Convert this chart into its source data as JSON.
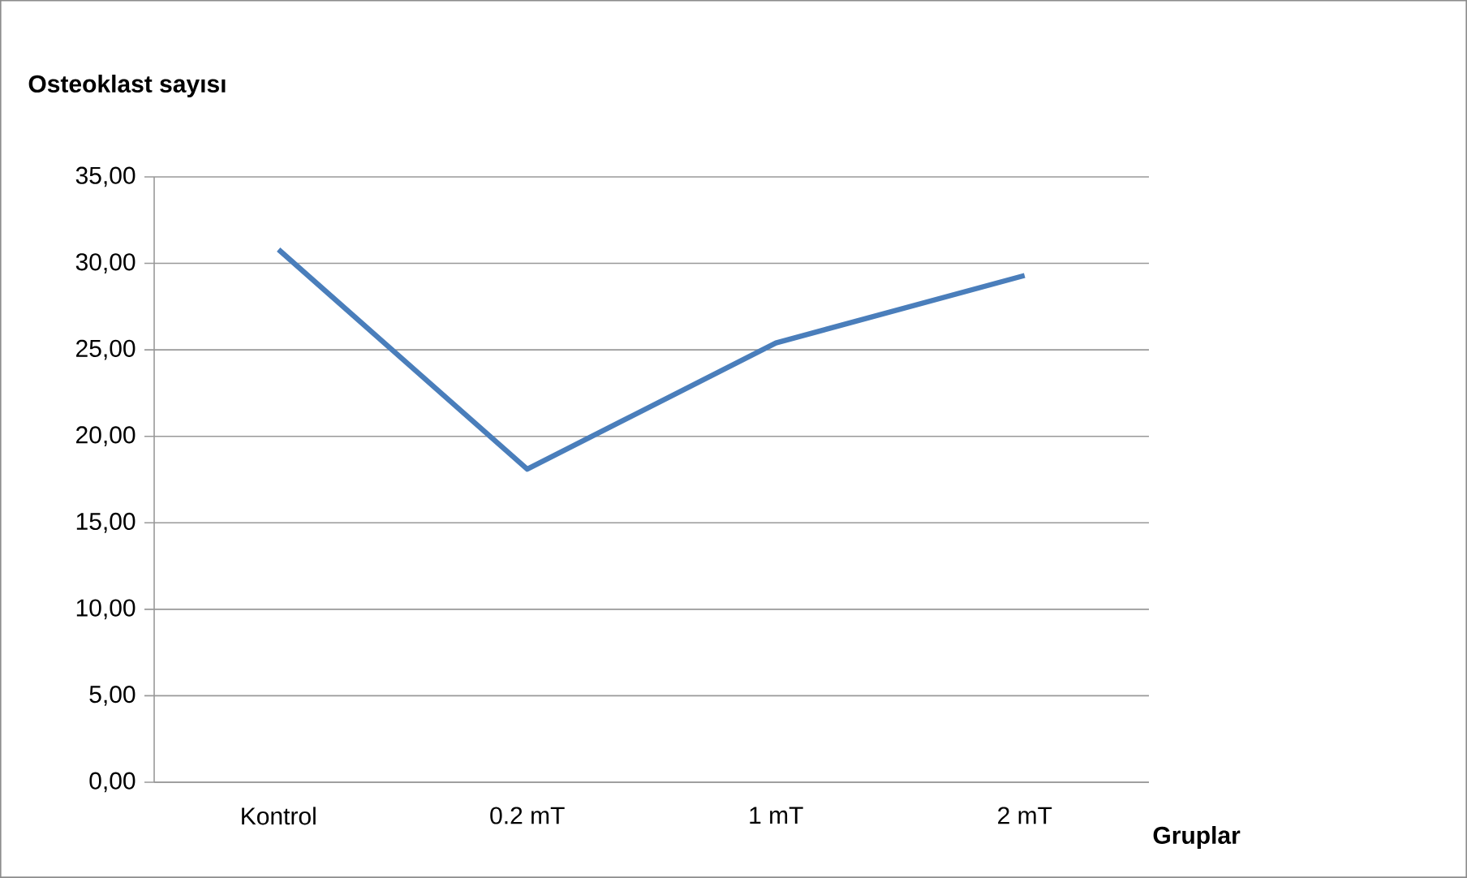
{
  "chart_data": {
    "type": "line",
    "title": "Osteoklast sayısı",
    "xlabel": "Gruplar",
    "categories": [
      "Kontrol",
      "0.2 mT",
      "1 mT",
      "2 mT"
    ],
    "series": [
      {
        "color": "#4a7ebb",
        "values": [
          30.8,
          18.1,
          25.4,
          29.3
        ]
      }
    ],
    "ylim": [
      0,
      35
    ],
    "yticks": [
      {
        "value": 0,
        "label": "0,00"
      },
      {
        "value": 5,
        "label": "5,00"
      },
      {
        "value": 10,
        "label": "10,00"
      },
      {
        "value": 15,
        "label": "15,00"
      },
      {
        "value": 20,
        "label": "20,00"
      },
      {
        "value": 25,
        "label": "25,00"
      },
      {
        "value": 30,
        "label": "30,00"
      },
      {
        "value": 35,
        "label": "35,00"
      }
    ],
    "grid": "y",
    "marker": "none",
    "line_style": "solid"
  }
}
